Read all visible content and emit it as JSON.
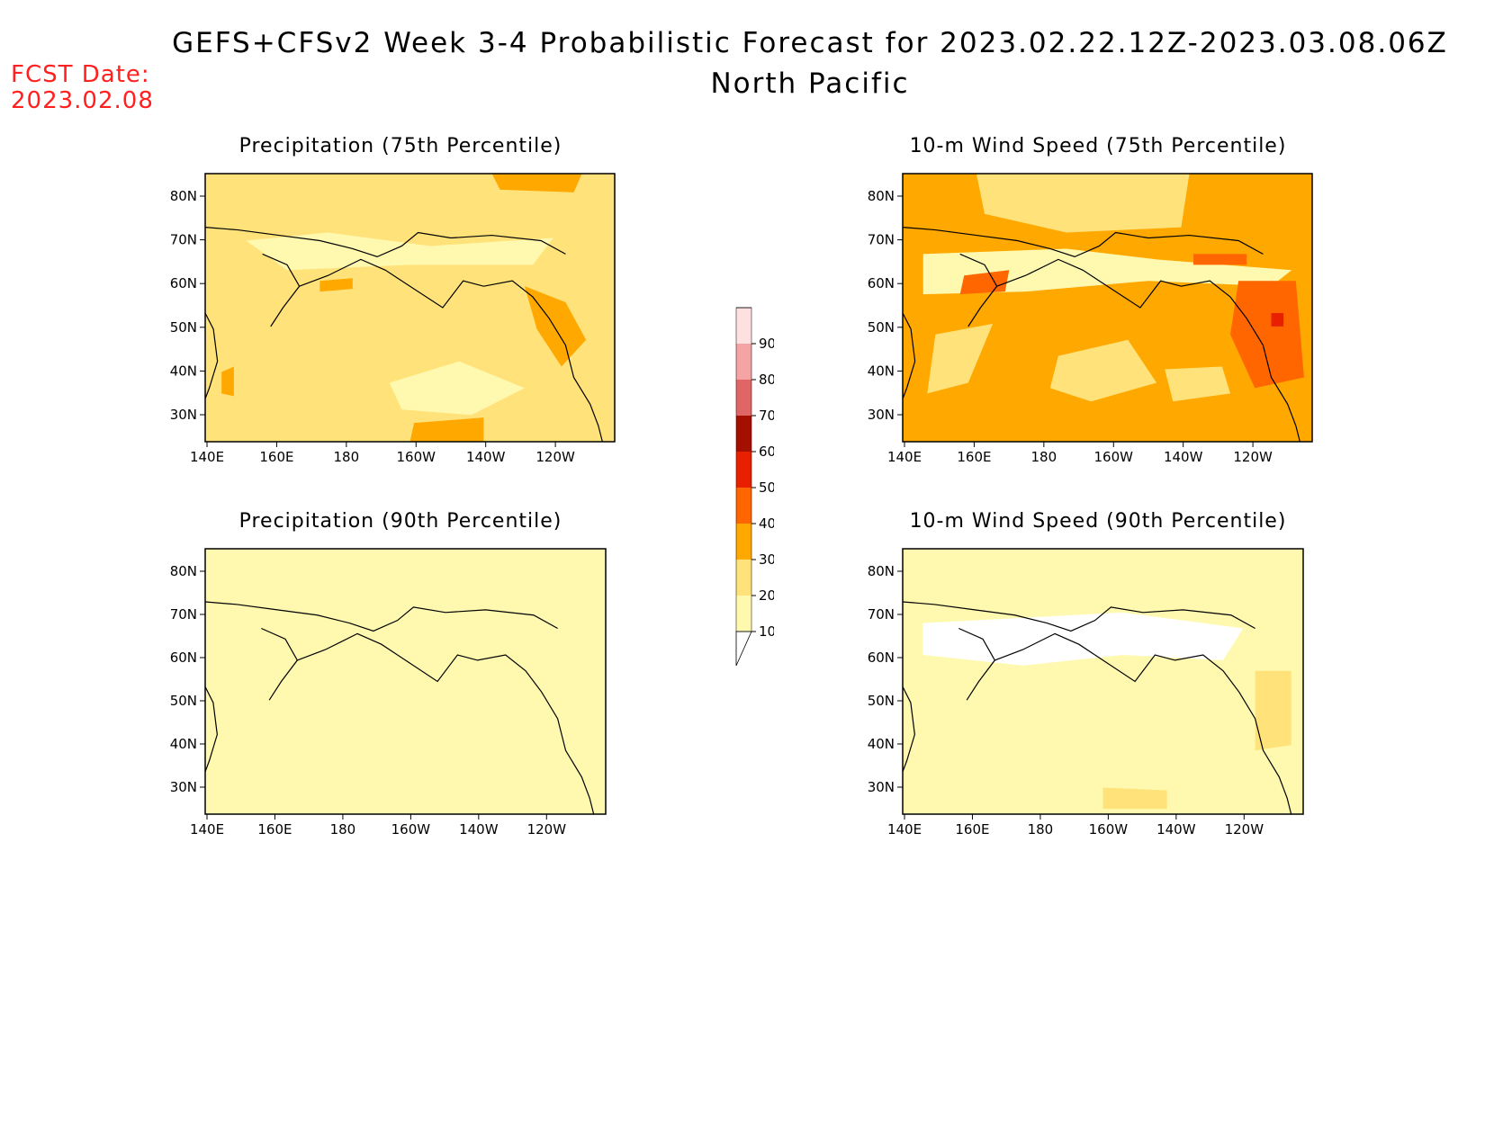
{
  "header": {
    "title": "GEFS+CFSv2 Week 3-4 Probabilistic Forecast for 2023.02.22.12Z-2023.03.08.06Z",
    "subtitle": "North Pacific",
    "fcst_label": "FCST Date:",
    "fcst_date": "2023.02.08"
  },
  "axes": {
    "x_ticks": [
      "140E",
      "160E",
      "180",
      "160W",
      "140W",
      "120W"
    ],
    "y_ticks": [
      "80N",
      "70N",
      "60N",
      "50N",
      "40N",
      "30N"
    ]
  },
  "panels": [
    {
      "title": "Precipitation (75th Percentile)",
      "base_level": 20,
      "hotspots": "precip75"
    },
    {
      "title": "10-m Wind Speed (75th Percentile)",
      "base_level": 30,
      "hotspots": "wind75"
    },
    {
      "title": "Precipitation (90th Percentile)",
      "base_level": 10,
      "hotspots": "precip90"
    },
    {
      "title": "10-m Wind Speed (90th Percentile)",
      "base_level": 10,
      "hotspots": "wind90"
    }
  ],
  "colorbar": {
    "levels": [
      10,
      20,
      30,
      40,
      50,
      60,
      70,
      80,
      90
    ],
    "labels": [
      "10",
      "20",
      "30",
      "40",
      "50",
      "60",
      "70",
      "80",
      "90"
    ],
    "colors": [
      "#fff9b0",
      "#ffe37a",
      "#ffa800",
      "#ff6600",
      "#e82000",
      "#a50f00",
      "#e06666",
      "#f4a4a4",
      "#ffe0e0"
    ]
  }
}
